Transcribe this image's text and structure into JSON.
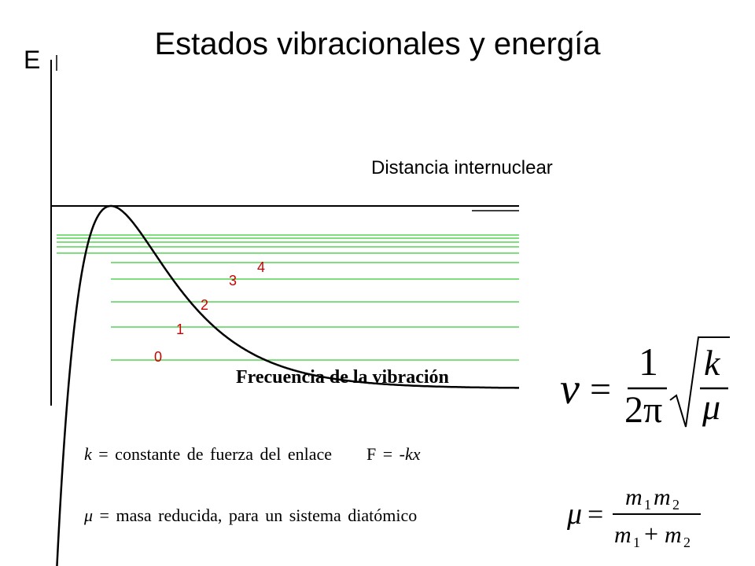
{
  "title": "Estados vibracionales y energía",
  "y_axis_label": "E",
  "x_axis_label": "Distancia internuclear",
  "levels": [
    "0",
    "1",
    "2",
    "3",
    "4"
  ],
  "colors": {
    "curve": "#000000",
    "levels": "#33cc33",
    "level_labels": "#cc0000"
  },
  "frequency_label": "Frecuencia de la vibración",
  "k_definition": {
    "symbol": "k",
    "text": " = constante de fuerza del enlace",
    "law_prefix": "F = -",
    "law_var": "kx"
  },
  "mu_definition": {
    "symbol": "μ",
    "text": " = masa reducida, para un sistema diatómico"
  },
  "frequency_formula": {
    "lhs": "ν",
    "eq": "=",
    "num": "1",
    "den": "2π",
    "rad_num": "k",
    "rad_den": "μ"
  },
  "mu_formula": {
    "lhs": "μ",
    "eq": "=",
    "num_a": "m",
    "num_a_sub": "1",
    "num_b": "m",
    "num_b_sub": "2",
    "den_a": "m",
    "den_a_sub": "1",
    "plus": "+",
    "den_b": "m",
    "den_b_sub": "2"
  }
}
